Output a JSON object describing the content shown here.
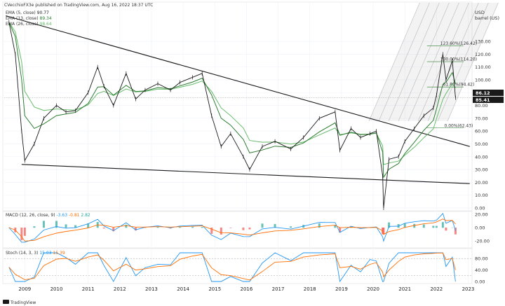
{
  "header": {
    "author_line": "CVecchioFX3e published on TradingView.com, Aug 16, 2022 18:37 UTC",
    "legend": [
      {
        "label": "EMA (5, close)",
        "value": "90.77",
        "color": "#1a1a1a"
      },
      {
        "label": "EMA (13, close)",
        "value": "89.34",
        "color": "#2e7d32"
      },
      {
        "label": "EMA (26, close)",
        "value": "98.64",
        "color": "#66bb6a"
      }
    ]
  },
  "price_axis": {
    "unit_line1": "USD",
    "unit_line2": "barrel (US)",
    "ticks": [
      "130.00",
      "120.00",
      "110.00",
      "100.00",
      "90.00",
      "80.00",
      "70.00",
      "60.00",
      "50.00",
      "40.00",
      "30.00",
      "20.00",
      "10.00",
      "0.00"
    ],
    "tick_values": [
      130,
      120,
      110,
      100,
      90,
      80,
      70,
      60,
      50,
      40,
      30,
      20,
      10,
      0
    ],
    "last_price": "86.12",
    "last_price_value": 86.12,
    "prev_price": "85.41",
    "prev_price_value": 85.41
  },
  "fib_levels": [
    {
      "label": "123.60%(126.42)",
      "value": 126.42
    },
    {
      "label": "100.00%(114.20)",
      "value": 114.2
    },
    {
      "label": "61.80%(94.42)",
      "value": 94.42
    },
    {
      "label": "0.00%(62.43)",
      "value": 62.43
    }
  ],
  "macd": {
    "label": "MACD (12, 26, close, 9)",
    "v1": "-3.63",
    "v2": "-0.81",
    "v3": "2.82",
    "ticks": [
      "20.00",
      "0.00",
      "-20.00"
    ],
    "tick_values": [
      20,
      0,
      -20
    ]
  },
  "stoch": {
    "label": "Stoch (14, 3, 3)",
    "v1": "15.03",
    "v2": "15.39",
    "ticks": [
      "80.00",
      "40.00",
      "0.00"
    ],
    "tick_values": [
      80,
      40,
      0
    ]
  },
  "x_axis": {
    "ticks": [
      "2009",
      "2010",
      "2011",
      "2012",
      "2013",
      "2014",
      "2015",
      "2016",
      "2017",
      "2018",
      "2019",
      "2020",
      "2021",
      "2022",
      "2023"
    ],
    "tick_years": [
      2009,
      2010,
      2011,
      2012,
      2013,
      2014,
      2015,
      2016,
      2017,
      2018,
      2019,
      2020,
      2021,
      2022,
      2023
    ]
  },
  "footer": {
    "brand": "TradingView"
  },
  "colors": {
    "price": "#1a1a1a",
    "ema13": "#2e7d32",
    "ema26": "#66bb6a",
    "macd": "#2196f3",
    "signal": "#ff6d00",
    "hist_pos": "#26a69a",
    "hist_neg": "#ef5350"
  },
  "chart_data": {
    "type": "line",
    "ylabel": "USD barrel (US)",
    "ylim": [
      0,
      140
    ],
    "x": [
      2008.5,
      2008.7,
      2008.9,
      2009.0,
      2009.3,
      2009.6,
      2010.0,
      2010.3,
      2010.6,
      2011.0,
      2011.3,
      2011.5,
      2011.8,
      2012.2,
      2012.5,
      2012.8,
      2013.2,
      2013.6,
      2013.9,
      2014.3,
      2014.6,
      2014.9,
      2015.2,
      2015.5,
      2015.9,
      2016.1,
      2016.5,
      2016.9,
      2017.4,
      2017.8,
      2018.3,
      2018.8,
      2018.95,
      2019.3,
      2019.6,
      2019.9,
      2020.1,
      2020.3,
      2020.33,
      2020.5,
      2020.8,
      2021.0,
      2021.3,
      2021.6,
      2021.9,
      2022.0,
      2022.2,
      2022.3,
      2022.5,
      2022.6
    ],
    "series": [
      {
        "values": [
          145,
          120,
          60,
          37,
          50,
          70,
          80,
          75,
          76,
          90,
          110,
          95,
          80,
          105,
          85,
          92,
          97,
          92,
          98,
          102,
          105,
          72,
          48,
          58,
          40,
          30,
          48,
          52,
          46,
          55,
          70,
          75,
          45,
          62,
          55,
          58,
          60,
          25,
          0,
          38,
          40,
          52,
          62,
          72,
          78,
          88,
          120,
          100,
          115,
          86
        ]
      }
    ]
  }
}
